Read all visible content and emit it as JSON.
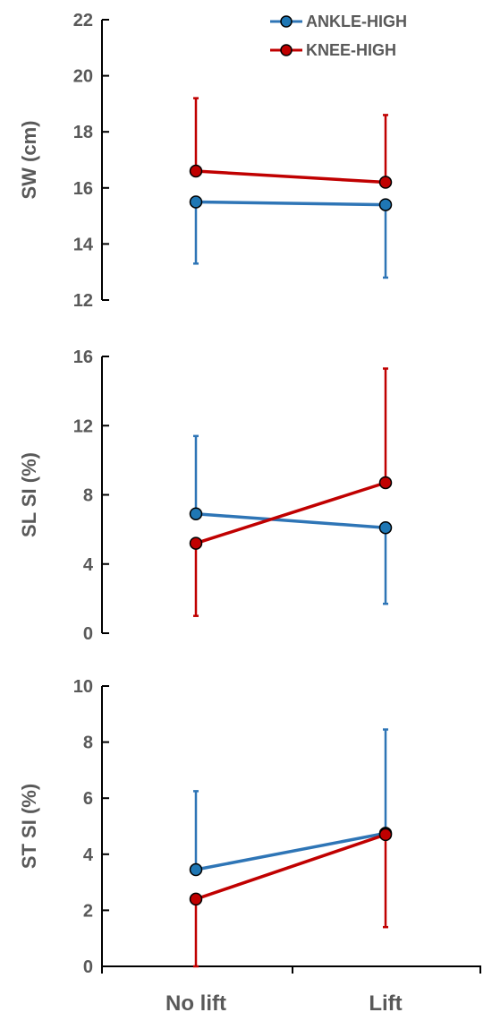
{
  "colors": {
    "ankle": "#2E75B6",
    "ankle_marker": "#1F77B4",
    "knee": "#C00000",
    "axis": "#000000",
    "text": "#595959"
  },
  "legend": [
    {
      "name": "ANKLE-HIGH",
      "color": "#2E75B6"
    },
    {
      "name": "KNEE-HIGH",
      "color": "#C00000"
    }
  ],
  "chart_data": [
    {
      "type": "line",
      "ylabel": "SW (cm)",
      "ylim": [
        12,
        22
      ],
      "yticks": [
        12,
        14,
        16,
        18,
        20,
        22
      ],
      "categories": [
        "No lift",
        "Lift"
      ],
      "legend_position": "top-right",
      "series": [
        {
          "name": "ANKLE-HIGH",
          "values": [
            15.5,
            15.4
          ],
          "error": [
            2.2,
            2.6
          ],
          "error_dir": "down"
        },
        {
          "name": "KNEE-HIGH",
          "values": [
            16.6,
            16.2
          ],
          "error": [
            2.6,
            2.4
          ],
          "error_dir": "up"
        }
      ]
    },
    {
      "type": "line",
      "ylabel": "SL SI (%)",
      "ylim": [
        0,
        16
      ],
      "yticks": [
        0,
        4,
        8,
        12,
        16
      ],
      "categories": [
        "No lift",
        "Lift"
      ],
      "series": [
        {
          "name": "ANKLE-HIGH",
          "values": [
            6.9,
            6.1
          ],
          "error": [
            4.5,
            4.4
          ],
          "error_dir": [
            "up",
            "down"
          ]
        },
        {
          "name": "KNEE-HIGH",
          "values": [
            5.2,
            8.7
          ],
          "error": [
            4.2,
            6.6
          ],
          "error_dir": [
            "down",
            "up"
          ]
        }
      ]
    },
    {
      "type": "line",
      "ylabel": "ST SI (%)",
      "ylim": [
        0,
        10
      ],
      "yticks": [
        0,
        2,
        4,
        6,
        8,
        10
      ],
      "categories": [
        "No lift",
        "Lift"
      ],
      "series": [
        {
          "name": "ANKLE-HIGH",
          "values": [
            3.45,
            4.75
          ],
          "error": [
            2.8,
            3.7
          ],
          "error_dir": "up"
        },
        {
          "name": "KNEE-HIGH",
          "values": [
            2.4,
            4.7
          ],
          "error": [
            2.4,
            3.3
          ],
          "error_dir": "down"
        }
      ]
    }
  ]
}
